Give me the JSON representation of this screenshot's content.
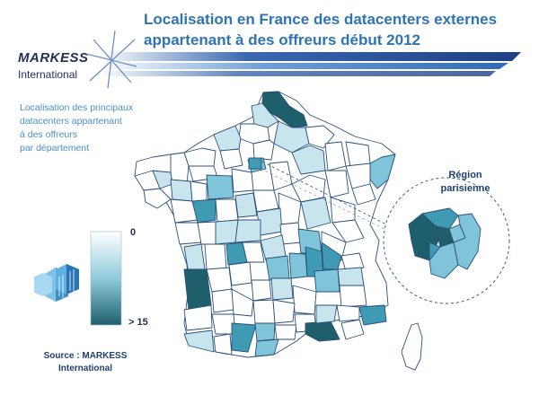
{
  "title": {
    "line1": "Localisation en France des datacenters externes",
    "line2": "appartenant à des offreurs début 2012"
  },
  "logo": {
    "name": "MARKESS",
    "sub": "International"
  },
  "subtitle": {
    "lines": [
      "Localisation des principaux",
      "datacenters appartenant",
      "à des offreurs",
      "par département"
    ]
  },
  "legend": {
    "min_label": "0",
    "max_label": "> 15",
    "color_low": "#ffffff",
    "color_high": "#1f5f6c"
  },
  "source": {
    "line1": "Source : MARKESS",
    "line2": "International"
  },
  "inset": {
    "label_line1": "Région",
    "label_line2": "parisienne"
  },
  "colors": {
    "title": "#2f74b5",
    "light": "#c8e5ee",
    "mid": "#7fc4d8",
    "strong": "#3e9bb3",
    "dark": "#1f5f6c",
    "banner": "#1e3f86"
  }
}
